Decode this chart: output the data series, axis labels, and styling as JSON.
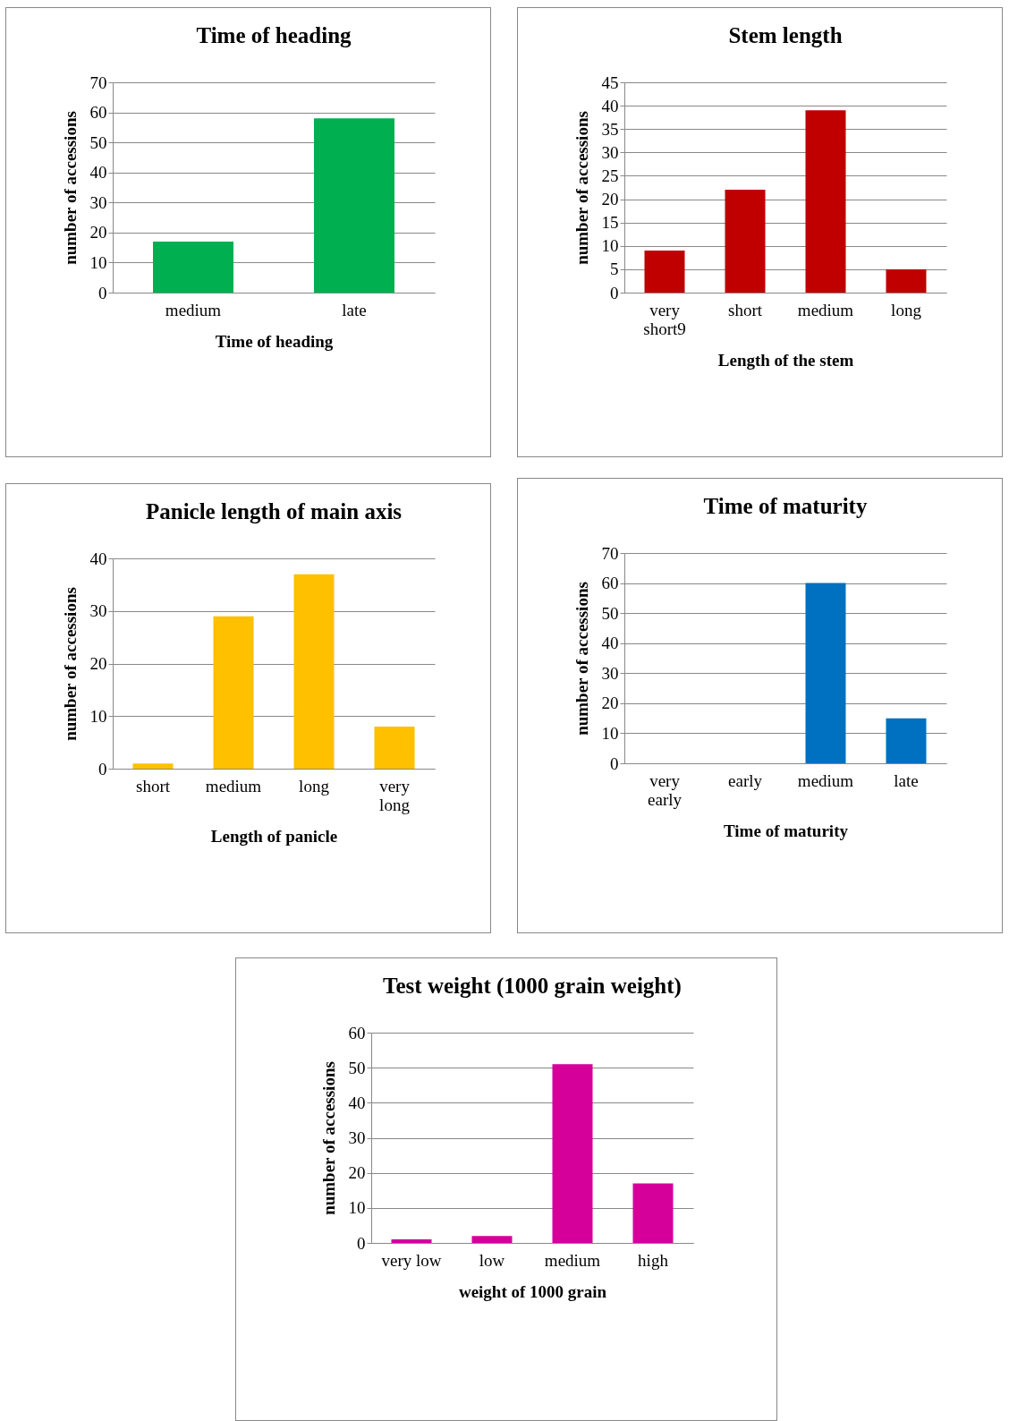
{
  "chart_data": [
    {
      "type": "bar",
      "title": "Time of heading",
      "xlabel": "Time of heading",
      "ylabel": "number of accessions",
      "categories": [
        "medium",
        "late"
      ],
      "values": [
        17,
        58
      ],
      "color": "#00b050",
      "ylim": [
        0,
        70
      ],
      "yticks": [
        0,
        10,
        20,
        30,
        40,
        50,
        60,
        70
      ],
      "grid": "y"
    },
    {
      "type": "bar",
      "title": "Stem length",
      "xlabel": "Length of the stem",
      "ylabel": "number of accessions",
      "categories": [
        "very short9",
        "short",
        "medium",
        "long"
      ],
      "values": [
        9,
        22,
        39,
        5
      ],
      "color": "#c00000",
      "ylim": [
        0,
        45
      ],
      "yticks": [
        0,
        5,
        10,
        15,
        20,
        25,
        30,
        35,
        40,
        45
      ],
      "grid": "y"
    },
    {
      "type": "bar",
      "title": "Panicle length of main axis",
      "xlabel": "Length of panicle",
      "ylabel": "number of accessions",
      "categories": [
        "short",
        "medium",
        "long",
        "very long"
      ],
      "values": [
        1,
        29,
        37,
        8
      ],
      "color": "#ffc000",
      "ylim": [
        0,
        40
      ],
      "yticks": [
        0,
        10,
        20,
        30,
        40
      ],
      "grid": "y"
    },
    {
      "type": "bar",
      "title": "Time of maturity",
      "xlabel": "Time of maturity",
      "ylabel": "number of accessions",
      "categories": [
        "very early",
        "early",
        "medium",
        "late"
      ],
      "values": [
        0,
        0,
        60,
        15
      ],
      "color": "#0070c0",
      "ylim": [
        0,
        70
      ],
      "yticks": [
        0,
        10,
        20,
        30,
        40,
        50,
        60,
        70
      ],
      "grid": "y"
    },
    {
      "type": "bar",
      "title": "Test weight (1000 grain weight)",
      "xlabel": "weight of 1000 grain",
      "ylabel": "number of accessions",
      "categories": [
        "very low",
        "low",
        "medium",
        "high"
      ],
      "values": [
        1,
        2,
        51,
        17
      ],
      "color": "#d5009a",
      "ylim": [
        0,
        60
      ],
      "yticks": [
        0,
        10,
        20,
        30,
        40,
        50,
        60
      ],
      "grid": "y"
    }
  ]
}
